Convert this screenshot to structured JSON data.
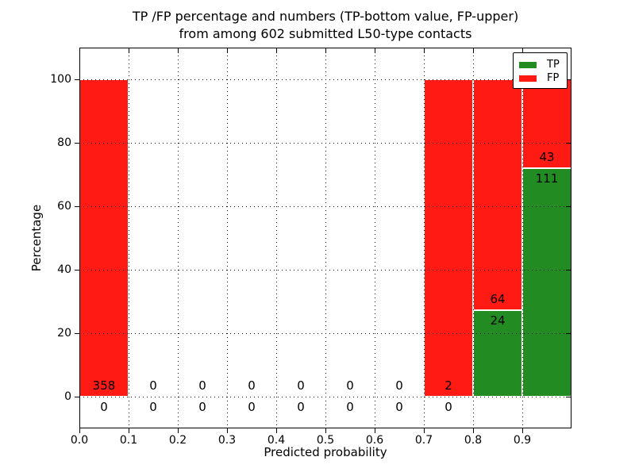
{
  "chart_data": {
    "type": "bar",
    "stacked": true,
    "title": "TP /FP percentage and numbers (TP-bottom value, FP-upper)\nfrom among 602 submitted L50-type contacts",
    "xlabel": "Predicted probability",
    "ylabel": "Percentage",
    "xlim": [
      0.0,
      1.0
    ],
    "ylim": [
      -10,
      110
    ],
    "grid": "dotted",
    "legend_position": "upper right",
    "colors": {
      "tp": "#228b22",
      "fp": "#ff1a13",
      "bar_edge": "#ffffff",
      "grid": "#000000"
    },
    "legend": [
      {
        "name": "TP",
        "color": "#228b22"
      },
      {
        "name": "FP",
        "color": "#ff1a13"
      }
    ],
    "yticks": [
      {
        "value": 0,
        "label": "0"
      },
      {
        "value": 20,
        "label": "20"
      },
      {
        "value": 40,
        "label": "40"
      },
      {
        "value": 60,
        "label": "60"
      },
      {
        "value": 80,
        "label": "80"
      },
      {
        "value": 100,
        "label": "100"
      }
    ],
    "xticks": [
      {
        "value": 0.0,
        "label": "0.0"
      },
      {
        "value": 0.1,
        "label": "0.1"
      },
      {
        "value": 0.2,
        "label": "0.2"
      },
      {
        "value": 0.3,
        "label": "0.3"
      },
      {
        "value": 0.4,
        "label": "0.4"
      },
      {
        "value": 0.5,
        "label": "0.5"
      },
      {
        "value": 0.6,
        "label": "0.6"
      },
      {
        "value": 0.7,
        "label": "0.7"
      },
      {
        "value": 0.8,
        "label": "0.8"
      },
      {
        "value": 0.9,
        "label": "0.9"
      }
    ],
    "bins": [
      {
        "x_start": 0.0,
        "x_end": 0.1,
        "tp_count": 0,
        "fp_count": 358,
        "tp_pct": 0,
        "fp_pct": 100
      },
      {
        "x_start": 0.1,
        "x_end": 0.2,
        "tp_count": 0,
        "fp_count": 0,
        "tp_pct": 0,
        "fp_pct": 0
      },
      {
        "x_start": 0.2,
        "x_end": 0.3,
        "tp_count": 0,
        "fp_count": 0,
        "tp_pct": 0,
        "fp_pct": 0
      },
      {
        "x_start": 0.3,
        "x_end": 0.4,
        "tp_count": 0,
        "fp_count": 0,
        "tp_pct": 0,
        "fp_pct": 0
      },
      {
        "x_start": 0.4,
        "x_end": 0.5,
        "tp_count": 0,
        "fp_count": 0,
        "tp_pct": 0,
        "fp_pct": 0
      },
      {
        "x_start": 0.5,
        "x_end": 0.6,
        "tp_count": 0,
        "fp_count": 0,
        "tp_pct": 0,
        "fp_pct": 0
      },
      {
        "x_start": 0.6,
        "x_end": 0.7,
        "tp_count": 0,
        "fp_count": 0,
        "tp_pct": 0,
        "fp_pct": 0
      },
      {
        "x_start": 0.7,
        "x_end": 0.8,
        "tp_count": 0,
        "fp_count": 2,
        "tp_pct": 0,
        "fp_pct": 100
      },
      {
        "x_start": 0.8,
        "x_end": 0.9,
        "tp_count": 24,
        "fp_count": 64,
        "tp_pct": 27.27,
        "fp_pct": 72.73
      },
      {
        "x_start": 0.9,
        "x_end": 1.0,
        "tp_count": 111,
        "fp_count": 43,
        "tp_pct": 72.08,
        "fp_pct": 27.92
      }
    ]
  }
}
